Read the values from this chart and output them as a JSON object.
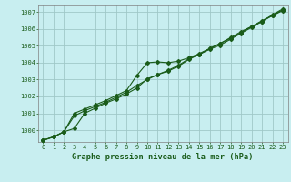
{
  "title": "Graphe pression niveau de la mer (hPa)",
  "bg_color": "#c8eef0",
  "grid_color": "#a0c8c8",
  "line_color": "#1a5c1a",
  "marker_color": "#1a5c1a",
  "xlim": [
    -0.5,
    23.5
  ],
  "ylim": [
    999.3,
    1007.4
  ],
  "yticks": [
    1000,
    1001,
    1002,
    1003,
    1004,
    1005,
    1006,
    1007
  ],
  "xticks": [
    0,
    1,
    2,
    3,
    4,
    5,
    6,
    7,
    8,
    9,
    10,
    11,
    12,
    13,
    14,
    15,
    16,
    17,
    18,
    19,
    20,
    21,
    22,
    23
  ],
  "series1": [
    999.4,
    999.6,
    999.9,
    1000.1,
    1001.0,
    1001.3,
    1001.6,
    1001.85,
    1002.15,
    1002.5,
    1003.05,
    1003.3,
    1003.5,
    1003.8,
    1004.2,
    1004.5,
    1004.8,
    1005.05,
    1005.4,
    1005.75,
    1006.1,
    1006.45,
    1006.85,
    1007.2
  ],
  "series2": [
    999.4,
    999.6,
    999.9,
    1001.0,
    1001.25,
    1001.5,
    1001.75,
    1002.05,
    1002.35,
    1003.25,
    1004.0,
    1004.05,
    1004.0,
    1004.1,
    1004.3,
    1004.55,
    1004.85,
    1005.15,
    1005.45,
    1005.8,
    1006.15,
    1006.5,
    1006.8,
    1007.15
  ],
  "series3": [
    999.4,
    999.6,
    999.9,
    1000.85,
    1001.15,
    1001.4,
    1001.65,
    1001.95,
    1002.25,
    1002.65,
    1003.0,
    1003.3,
    1003.55,
    1003.85,
    1004.25,
    1004.5,
    1004.85,
    1005.15,
    1005.5,
    1005.85,
    1006.15,
    1006.45,
    1006.8,
    1007.1
  ],
  "tick_fontsize": 5.0,
  "label_fontsize": 6.2,
  "title_fontweight": "bold"
}
